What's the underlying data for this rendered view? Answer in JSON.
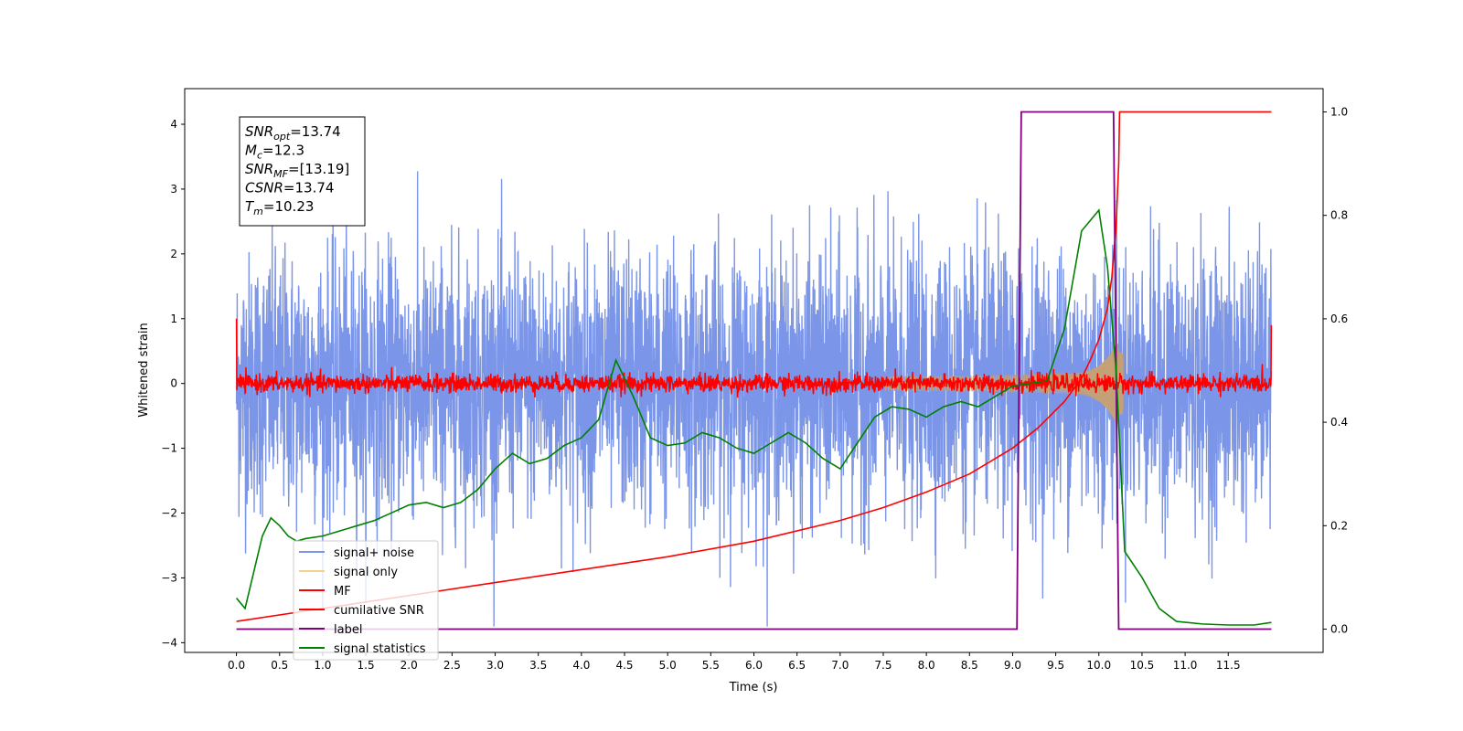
{
  "chart_data": {
    "type": "line",
    "title": "",
    "xlabel": "Time (s)",
    "ylabel": "Whitened strain",
    "xlim": [
      -0.6,
      12.6
    ],
    "ylim": [
      -4.15,
      4.55
    ],
    "y2lim": [
      -0.045,
      1.045
    ],
    "xticks": [
      "0.0",
      "0.5",
      "1.0",
      "1.5",
      "2.0",
      "2.5",
      "3.0",
      "3.5",
      "4.0",
      "4.5",
      "5.0",
      "5.5",
      "6.0",
      "6.5",
      "7.0",
      "7.5",
      "8.0",
      "8.5",
      "9.0",
      "9.5",
      "10.0",
      "10.5",
      "11.0",
      "11.5"
    ],
    "yticks_left": [
      "4",
      "3",
      "2",
      "1",
      "0",
      "−1",
      "−2",
      "−3",
      "−4"
    ],
    "yticks_right": [
      "1.0",
      "0.8",
      "0.6",
      "0.4",
      "0.2",
      "0.0"
    ],
    "grid": false,
    "legend_position": "lower-left",
    "annotation": [
      {
        "var": "SNR",
        "sub": "opt",
        "value": "=13.74"
      },
      {
        "var": "M",
        "sub": "c",
        "value": "=12.3"
      },
      {
        "var": "SNR",
        "sub": "MF",
        "value": "=[13.19]"
      },
      {
        "var": "CSNR",
        "sub": "",
        "value": "=13.74"
      },
      {
        "var": "T",
        "sub": "m",
        "value": "=10.23"
      }
    ],
    "series": [
      {
        "name": "signal+ noise",
        "color": "#7b95e8",
        "axis": "left",
        "kind": "noise",
        "std": 1.0,
        "range": [
          0,
          12.0
        ]
      },
      {
        "name": "signal only",
        "color": "#f6cf8a",
        "axis": "left",
        "kind": "chirp",
        "merger_time": 10.23,
        "peak_amplitude": 1.1
      },
      {
        "name": "MF",
        "color": "#ff0000",
        "axis": "left",
        "kind": "noise",
        "std": 0.07,
        "range": [
          0,
          12.0
        ],
        "edge_values": [
          1.0,
          0.9
        ]
      },
      {
        "name": "cumilative SNR",
        "color": "#ff0000",
        "axis": "right",
        "x": [
          0.0,
          1.0,
          2.0,
          3.0,
          4.0,
          5.0,
          6.0,
          7.0,
          7.5,
          8.0,
          8.5,
          9.0,
          9.3,
          9.6,
          9.8,
          9.9,
          10.0,
          10.1,
          10.15,
          10.2,
          10.23,
          10.24,
          12.0
        ],
        "y": [
          0.015,
          0.04,
          0.065,
          0.09,
          0.115,
          0.14,
          0.17,
          0.21,
          0.235,
          0.265,
          0.3,
          0.35,
          0.39,
          0.44,
          0.485,
          0.52,
          0.56,
          0.62,
          0.68,
          0.78,
          0.9,
          1.0,
          1.0
        ]
      },
      {
        "name": "label",
        "color": "#800080",
        "axis": "right",
        "x": [
          0.0,
          9.05,
          9.1,
          10.17,
          10.23,
          12.0
        ],
        "y": [
          0.0,
          0.0,
          1.0,
          1.0,
          0.0,
          0.0
        ]
      },
      {
        "name": "signal statistics",
        "color": "#008000",
        "axis": "right",
        "x": [
          0.0,
          0.1,
          0.2,
          0.3,
          0.4,
          0.5,
          0.6,
          0.7,
          0.8,
          1.0,
          1.2,
          1.4,
          1.6,
          1.8,
          2.0,
          2.2,
          2.4,
          2.6,
          2.8,
          3.0,
          3.2,
          3.4,
          3.6,
          3.8,
          4.0,
          4.2,
          4.4,
          4.6,
          4.8,
          5.0,
          5.2,
          5.4,
          5.6,
          5.8,
          6.0,
          6.2,
          6.4,
          6.6,
          6.8,
          7.0,
          7.2,
          7.4,
          7.6,
          7.8,
          8.0,
          8.2,
          8.4,
          8.6,
          8.8,
          9.0,
          9.2,
          9.4,
          9.6,
          9.8,
          9.9,
          10.0,
          10.1,
          10.2,
          10.3,
          10.5,
          10.7,
          10.9,
          11.2,
          11.5,
          11.8,
          12.0
        ],
        "y": [
          0.06,
          0.04,
          0.11,
          0.18,
          0.215,
          0.2,
          0.18,
          0.17,
          0.175,
          0.18,
          0.19,
          0.2,
          0.21,
          0.225,
          0.24,
          0.245,
          0.235,
          0.245,
          0.27,
          0.31,
          0.34,
          0.32,
          0.33,
          0.355,
          0.37,
          0.405,
          0.52,
          0.45,
          0.37,
          0.355,
          0.36,
          0.38,
          0.37,
          0.35,
          0.34,
          0.36,
          0.38,
          0.36,
          0.33,
          0.31,
          0.36,
          0.41,
          0.43,
          0.425,
          0.41,
          0.43,
          0.44,
          0.43,
          0.45,
          0.47,
          0.475,
          0.48,
          0.58,
          0.77,
          0.79,
          0.81,
          0.7,
          0.5,
          0.15,
          0.1,
          0.04,
          0.015,
          0.01,
          0.008,
          0.008,
          0.013
        ]
      }
    ]
  }
}
